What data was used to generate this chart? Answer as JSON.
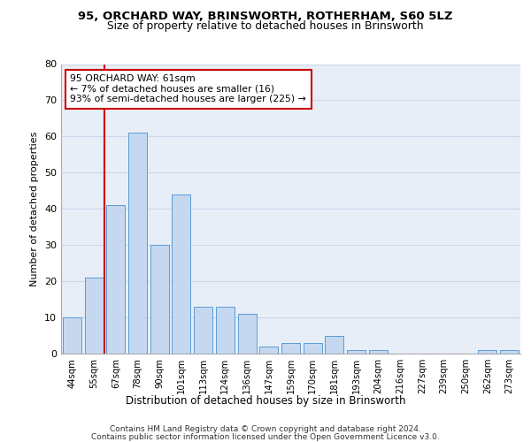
{
  "title1": "95, ORCHARD WAY, BRINSWORTH, ROTHERHAM, S60 5LZ",
  "title2": "Size of property relative to detached houses in Brinsworth",
  "xlabel": "Distribution of detached houses by size in Brinsworth",
  "ylabel": "Number of detached properties",
  "categories": [
    "44sqm",
    "55sqm",
    "67sqm",
    "78sqm",
    "90sqm",
    "101sqm",
    "113sqm",
    "124sqm",
    "136sqm",
    "147sqm",
    "159sqm",
    "170sqm",
    "181sqm",
    "193sqm",
    "204sqm",
    "216sqm",
    "227sqm",
    "239sqm",
    "250sqm",
    "262sqm",
    "273sqm"
  ],
  "values": [
    10,
    21,
    41,
    61,
    30,
    44,
    13,
    13,
    11,
    2,
    3,
    3,
    5,
    1,
    1,
    0,
    0,
    0,
    0,
    1,
    1
  ],
  "bar_color": "#c5d8f0",
  "bar_edge_color": "#5b9bd5",
  "vline_pos": 1.5,
  "vline_color": "#cc0000",
  "annotation_title": "95 ORCHARD WAY: 61sqm",
  "annotation_line1": "← 7% of detached houses are smaller (16)",
  "annotation_line2": "93% of semi-detached houses are larger (225) →",
  "annotation_box_facecolor": "#ffffff",
  "annotation_box_edgecolor": "#cc0000",
  "ylim": [
    0,
    80
  ],
  "yticks": [
    0,
    10,
    20,
    30,
    40,
    50,
    60,
    70,
    80
  ],
  "grid_color": "#c8d8ec",
  "plot_bg_color": "#e8eef8",
  "fig_bg_color": "#ffffff",
  "footer1": "Contains HM Land Registry data © Crown copyright and database right 2024.",
  "footer2": "Contains public sector information licensed under the Open Government Licence v3.0."
}
